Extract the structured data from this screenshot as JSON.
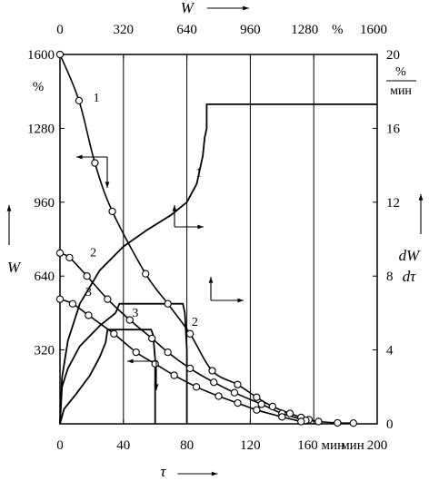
{
  "chart_data": [
    {
      "type": "line",
      "description_axes": "bottom x: tau (min) 0-200, left y: W (%) 0-1600",
      "xlabel": "τ",
      "ylabel": "W",
      "yunit": "%",
      "xunit": "мин",
      "xlim": [
        0,
        200
      ],
      "ylim": [
        0,
        1600
      ],
      "xticks": [
        0,
        40,
        80,
        120,
        160,
        200
      ],
      "xtick_labels": [
        "0",
        "40",
        "80",
        "120",
        "160 мин",
        "200"
      ],
      "yticks": [
        320,
        640,
        960,
        1280,
        1600
      ],
      "ytick_labels": [
        "320",
        "640",
        "960",
        "1280",
        "1600"
      ],
      "series": [
        {
          "name": "1",
          "x": [
            0,
            12,
            22,
            33,
            54,
            68,
            82,
            96,
            112,
            124,
            134,
            145,
            152,
            157,
            163,
            175,
            185
          ],
          "y": [
            1600,
            1400,
            1130,
            920,
            650,
            520,
            390,
            230,
            170,
            115,
            75,
            45,
            28,
            18,
            10,
            4,
            3
          ]
        },
        {
          "name": "2",
          "x": [
            0,
            6,
            17,
            30,
            44,
            58,
            68,
            82,
            97,
            110,
            127,
            140,
            155
          ],
          "y": [
            740,
            720,
            640,
            540,
            450,
            370,
            310,
            240,
            180,
            135,
            85,
            45,
            15
          ]
        },
        {
          "name": "3",
          "x": [
            0,
            8,
            18,
            34,
            48,
            60,
            72,
            86,
            100,
            112,
            124,
            140,
            152
          ],
          "y": [
            540,
            520,
            470,
            390,
            310,
            260,
            210,
            160,
            120,
            90,
            60,
            30,
            10
          ]
        }
      ]
    },
    {
      "type": "line",
      "description_axes": "top x: W (%) 0-1600, right y: dW/dtau (%/min) 0-20",
      "xlabel": "W",
      "ylabel": "dW/dτ",
      "yunit": "%/мин",
      "xunit": "%",
      "xlim": [
        0,
        1600
      ],
      "ylim": [
        0,
        20
      ],
      "xticks": [
        0,
        320,
        640,
        960,
        1280,
        1600
      ],
      "xtick_labels": [
        "0",
        "320",
        "640",
        "960",
        "1280",
        "1600"
      ],
      "xtick_unit_label": "%",
      "yticks": [
        0,
        4,
        8,
        12,
        16,
        20
      ],
      "ytick_labels": [
        "0",
        "4",
        "8",
        "12",
        "16",
        "20"
      ],
      "series": [
        {
          "name": "1",
          "x": [
            0,
            10,
            40,
            100,
            200,
            320,
            440,
            560,
            640,
            690,
            720,
            730,
            740,
            740,
            1600
          ],
          "y": [
            0,
            2.5,
            4.5,
            6.5,
            8.3,
            9.6,
            10.5,
            11.3,
            12.0,
            13.0,
            14.5,
            15.5,
            16.0,
            17.3,
            17.3
          ]
        },
        {
          "name": "2",
          "x": [
            0,
            10,
            40,
            100,
            200,
            280,
            300,
            310,
            620,
            630,
            640,
            640
          ],
          "y": [
            0,
            2.0,
            3.0,
            4.2,
            5.3,
            6.0,
            6.5,
            6.5,
            6.5,
            6.0,
            4.0,
            0
          ]
        },
        {
          "name": "3",
          "x": [
            0,
            20,
            80,
            150,
            200,
            230,
            240,
            460,
            470,
            480,
            480
          ],
          "y": [
            0,
            0.8,
            1.6,
            2.6,
            3.6,
            4.4,
            5.1,
            5.1,
            4.8,
            3.5,
            0
          ]
        }
      ]
    }
  ]
}
